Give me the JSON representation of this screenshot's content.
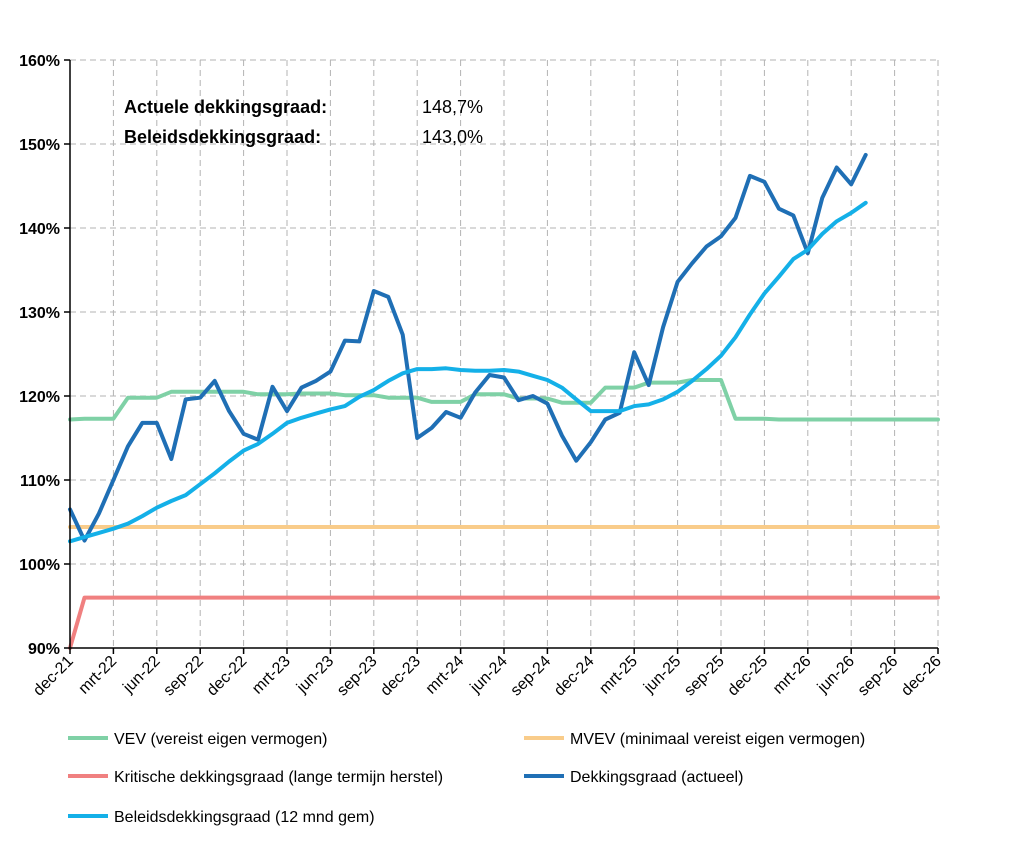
{
  "chart_data": {
    "type": "line",
    "ylim": [
      0.9,
      1.6
    ],
    "yticks": [
      0.9,
      1.0,
      1.1,
      1.2,
      1.3,
      1.4,
      1.5,
      1.6
    ],
    "ytick_labels": [
      "90%",
      "100%",
      "110%",
      "120%",
      "130%",
      "140%",
      "150%",
      "160%"
    ],
    "x_start": "2021-12",
    "x_end": "2026-12",
    "xtick_labels": [
      "dec-21",
      "mrt-22",
      "jun-22",
      "sep-22",
      "dec-22",
      "mrt-23",
      "jun-23",
      "sep-23",
      "dec-23",
      "mrt-24",
      "jun-24",
      "sep-24",
      "dec-24",
      "mrt-25",
      "jun-25",
      "sep-25",
      "dec-25",
      "mrt-26",
      "jun-26",
      "sep-26",
      "dec-26"
    ],
    "grid": true,
    "legend_position": "bottom",
    "annotations": [
      {
        "label": "Actuele dekkingsgraad:",
        "value": "148,7%"
      },
      {
        "label": "Beleidsdekkingsgraad:",
        "value": "143,0%"
      }
    ],
    "series": [
      {
        "name": "VEV (vereist eigen vermogen)",
        "color": "#7fd1a6",
        "start": "2021-12",
        "values": [
          1.172,
          1.173,
          1.173,
          1.173,
          1.198,
          1.198,
          1.198,
          1.205,
          1.205,
          1.205,
          1.205,
          1.205,
          1.205,
          1.202,
          1.202,
          1.202,
          1.203,
          1.203,
          1.203,
          1.201,
          1.201,
          1.201,
          1.198,
          1.198,
          1.198,
          1.193,
          1.193,
          1.193,
          1.202,
          1.202,
          1.202,
          1.197,
          1.197,
          1.197,
          1.192,
          1.192,
          1.192,
          1.21,
          1.21,
          1.21,
          1.216,
          1.216,
          1.216,
          1.219,
          1.219,
          1.219,
          1.173,
          1.173,
          1.173,
          1.172,
          1.172,
          1.172,
          1.172,
          1.172,
          1.172,
          1.172,
          1.172,
          1.172,
          1.172,
          1.172,
          1.172
        ]
      },
      {
        "name": "MVEV (minimaal vereist eigen vermogen)",
        "color": "#f9cc8a",
        "start": "2021-12",
        "values": [
          1.044,
          1.044,
          1.044,
          1.044,
          1.044,
          1.044,
          1.044,
          1.044,
          1.044,
          1.044,
          1.044,
          1.044,
          1.044,
          1.044,
          1.044,
          1.044,
          1.044,
          1.044,
          1.044,
          1.044,
          1.044,
          1.044,
          1.044,
          1.044,
          1.044,
          1.044,
          1.044,
          1.044,
          1.044,
          1.044,
          1.044,
          1.044,
          1.044,
          1.044,
          1.044,
          1.044,
          1.044,
          1.044,
          1.044,
          1.044,
          1.044,
          1.044,
          1.044,
          1.044,
          1.044,
          1.044,
          1.044,
          1.044,
          1.044,
          1.044,
          1.044,
          1.044,
          1.044,
          1.044,
          1.044,
          1.044,
          1.044,
          1.044,
          1.044,
          1.044,
          1.044
        ]
      },
      {
        "name": "Kritische dekkingsgraad (lange termijn herstel)",
        "color": "#f08080",
        "start": "2021-12",
        "values": [
          0.9,
          0.96,
          0.96,
          0.96,
          0.96,
          0.96,
          0.96,
          0.96,
          0.96,
          0.96,
          0.96,
          0.96,
          0.96,
          0.96,
          0.96,
          0.96,
          0.96,
          0.96,
          0.96,
          0.96,
          0.96,
          0.96,
          0.96,
          0.96,
          0.96,
          0.96,
          0.96,
          0.96,
          0.96,
          0.96,
          0.96,
          0.96,
          0.96,
          0.96,
          0.96,
          0.96,
          0.96,
          0.96,
          0.96,
          0.96,
          0.96,
          0.96,
          0.96,
          0.96,
          0.96,
          0.96,
          0.96,
          0.96,
          0.96,
          0.96,
          0.96,
          0.96,
          0.96,
          0.96,
          0.96,
          0.96,
          0.96,
          0.96,
          0.96,
          0.96,
          0.96
        ]
      },
      {
        "name": "Dekkingsgraad (actueel)",
        "color": "#1f6fb5",
        "start": "2021-12",
        "values": [
          1.065,
          1.028,
          1.06,
          1.1,
          1.14,
          1.168,
          1.168,
          1.125,
          1.196,
          1.198,
          1.218,
          1.182,
          1.155,
          1.148,
          1.211,
          1.182,
          1.21,
          1.218,
          1.229,
          1.266,
          1.265,
          1.325,
          1.318,
          1.273,
          1.15,
          1.162,
          1.181,
          1.174,
          1.204,
          1.225,
          1.222,
          1.195,
          1.2,
          1.191,
          1.153,
          1.123,
          1.145,
          1.172,
          1.18,
          1.252,
          1.213,
          1.282,
          1.336,
          1.358,
          1.378,
          1.39,
          1.412,
          1.462,
          1.455,
          1.423,
          1.415,
          1.37,
          1.436,
          1.472,
          1.452,
          1.487
        ]
      },
      {
        "name": "Beleidsdekkingsgraad (12 mnd gem)",
        "color": "#14b0e8",
        "start": "2021-12",
        "values": [
          1.027,
          1.032,
          1.037,
          1.042,
          1.048,
          1.057,
          1.067,
          1.075,
          1.082,
          1.095,
          1.108,
          1.122,
          1.135,
          1.143,
          1.155,
          1.168,
          1.174,
          1.179,
          1.184,
          1.188,
          1.199,
          1.207,
          1.218,
          1.227,
          1.232,
          1.232,
          1.233,
          1.231,
          1.23,
          1.23,
          1.231,
          1.229,
          1.224,
          1.219,
          1.21,
          1.196,
          1.182,
          1.182,
          1.182,
          1.188,
          1.19,
          1.196,
          1.205,
          1.218,
          1.232,
          1.248,
          1.27,
          1.297,
          1.322,
          1.342,
          1.363,
          1.374,
          1.393,
          1.408,
          1.418,
          1.43
        ]
      }
    ],
    "legend_order": [
      0,
      1,
      2,
      3,
      4
    ]
  }
}
